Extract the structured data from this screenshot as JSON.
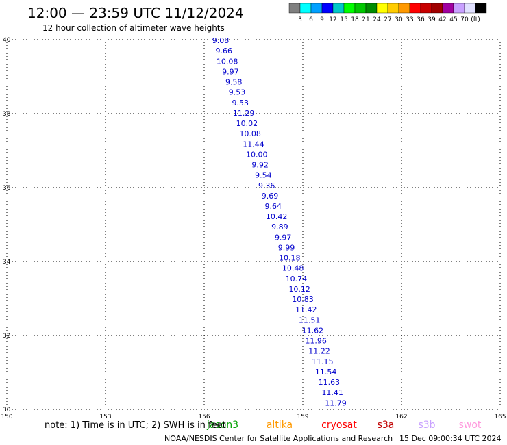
{
  "header": {
    "title": "12:00 — 23:59 UTC 11/12/2024",
    "subtitle": "12 hour collection of altimeter wave heights"
  },
  "scale": {
    "colors": [
      "#808080",
      "#00ffff",
      "#00a0ff",
      "#0000ff",
      "#00c8c8",
      "#00ff00",
      "#00c800",
      "#008c00",
      "#ffff00",
      "#ffcc00",
      "#ff9900",
      "#ff0000",
      "#c80000",
      "#a00000",
      "#a000a0",
      "#c8a0ff",
      "#e0e0ff",
      "#000000"
    ],
    "labels": [
      "3",
      "6",
      "9",
      "12",
      "15",
      "18",
      "21",
      "24",
      "27",
      "30",
      "33",
      "36",
      "39",
      "42",
      "45",
      "70",
      "(ft)"
    ]
  },
  "footer": {
    "note": "note:  1) Time is in UTC; 2) SWH is in feet",
    "credit": "NOAA/NESDIS Center for Satellite Applications and Research",
    "timestamp": "15 Dec 09:00:34 UTC 2024"
  },
  "legend": [
    {
      "name": "jason3",
      "color": "#00a000"
    },
    {
      "name": "altika",
      "color": "#ff9900"
    },
    {
      "name": "cryosat",
      "color": "#ff0000"
    },
    {
      "name": "s3a",
      "color": "#c00000"
    },
    {
      "name": "s3b",
      "color": "#c8a0ff"
    },
    {
      "name": "swot",
      "color": "#ff99dd"
    }
  ],
  "chart_data": {
    "type": "scatter",
    "title": "12:00 — 23:59 UTC 11/12/2024",
    "xlim": [
      150,
      165
    ],
    "ylim": [
      30,
      40
    ],
    "xticks": [
      150,
      153,
      156,
      159,
      162,
      165
    ],
    "yticks": [
      30,
      32,
      34,
      36,
      38,
      40
    ],
    "grid": true,
    "tracks": [
      {
        "name": "track-1",
        "points": [
          [
            156.5,
            39.98,
            "9.08",
            "#0000cc"
          ],
          [
            156.6,
            39.7,
            "9.66",
            "#0000cc"
          ],
          [
            156.7,
            39.42,
            "10.08",
            "#0000cc"
          ],
          [
            156.8,
            39.14,
            "9.97",
            "#0000cc"
          ],
          [
            156.9,
            38.86,
            "9.58",
            "#0000cc"
          ],
          [
            157.0,
            38.58,
            "9.53",
            "#0000cc"
          ],
          [
            157.1,
            38.3,
            "9.53",
            "#0000cc"
          ],
          [
            157.2,
            38.02,
            "11.29",
            "#0000cc"
          ],
          [
            157.3,
            37.74,
            "10.02",
            "#0000cc"
          ],
          [
            157.4,
            37.46,
            "10.08",
            "#0000cc"
          ],
          [
            157.5,
            37.18,
            "11.44",
            "#0000cc"
          ],
          [
            157.6,
            36.9,
            "10.00",
            "#0000cc"
          ],
          [
            157.7,
            36.62,
            "9.92",
            "#0000cc"
          ],
          [
            157.8,
            36.34,
            "9.54",
            "#0000cc"
          ],
          [
            157.9,
            36.06,
            "9.36",
            "#0000cc"
          ],
          [
            158.0,
            35.78,
            "9.69",
            "#0000cc"
          ],
          [
            158.1,
            35.5,
            "9.64",
            "#0000cc"
          ],
          [
            158.2,
            35.22,
            "10.42",
            "#0000cc"
          ],
          [
            158.3,
            34.94,
            "9.89",
            "#0000cc"
          ],
          [
            158.4,
            34.66,
            "9.97",
            "#0000cc"
          ],
          [
            158.5,
            34.38,
            "9.99",
            "#0000cc"
          ],
          [
            158.6,
            34.1,
            "10.18",
            "#0000cc"
          ],
          [
            158.7,
            33.82,
            "10.48",
            "#0000cc"
          ],
          [
            158.8,
            33.54,
            "10.74",
            "#0000cc"
          ],
          [
            158.9,
            33.26,
            "10.12",
            "#0000cc"
          ],
          [
            159.0,
            32.98,
            "10.83",
            "#0000cc"
          ],
          [
            159.1,
            32.7,
            "11.42",
            "#0000cc"
          ],
          [
            159.2,
            32.42,
            "11.51",
            "#0000cc"
          ],
          [
            159.3,
            32.14,
            "11.62",
            "#0000cc"
          ],
          [
            159.4,
            31.86,
            "11.96",
            "#0000cc"
          ],
          [
            159.5,
            31.58,
            "11.22",
            "#0000cc"
          ],
          [
            159.6,
            31.3,
            "11.15",
            "#0000cc"
          ],
          [
            159.7,
            31.02,
            "11.54",
            "#0000cc"
          ],
          [
            159.8,
            30.74,
            "11.63",
            "#0000cc"
          ],
          [
            159.9,
            30.46,
            "11.41",
            "#0000cc"
          ],
          [
            160.0,
            30.18,
            "11.79",
            "#0000cc"
          ]
        ]
      }
    ]
  }
}
